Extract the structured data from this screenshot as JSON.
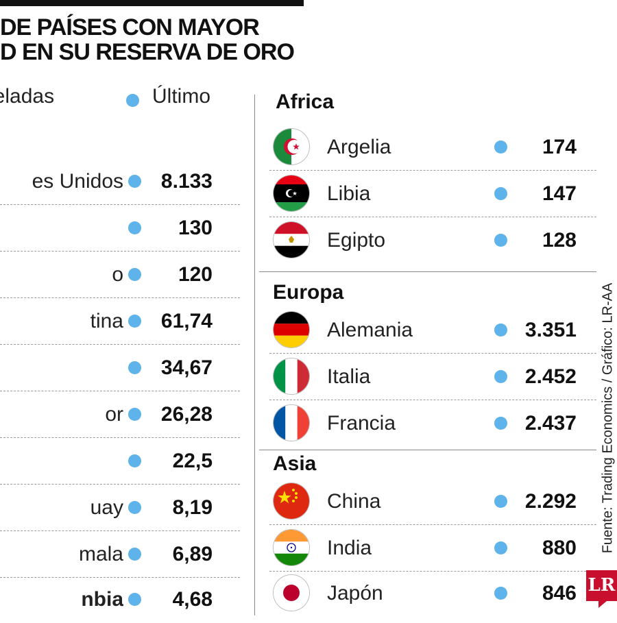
{
  "header": {
    "title_line1": "DE PAÍSES CON MAYOR",
    "title_line2": "D EN SU RESERVA DE ORO"
  },
  "left_table": {
    "unit_header": "neladas",
    "last_header": "Último",
    "rows": [
      {
        "name": "es Unidos",
        "value": "8.133"
      },
      {
        "name": "",
        "value": "130"
      },
      {
        "name": "o",
        "value": "120"
      },
      {
        "name": "tina",
        "value": "61,74"
      },
      {
        "name": "",
        "value": "34,67"
      },
      {
        "name": "or",
        "value": "26,28"
      },
      {
        "name": "",
        "value": "22,5"
      },
      {
        "name": "uay",
        "value": "8,19"
      },
      {
        "name": "mala",
        "value": "6,89"
      },
      {
        "name": "nbia",
        "value": "4,68",
        "bold": true
      }
    ]
  },
  "regions": [
    {
      "name": "Africa",
      "rows": [
        {
          "country": "Argelia",
          "value": "174",
          "flag": "algeria-flag"
        },
        {
          "country": "Libia",
          "value": "147",
          "flag": "libya-flag"
        },
        {
          "country": "Egipto",
          "value": "128",
          "flag": "egypt-flag"
        }
      ]
    },
    {
      "name": "Europa",
      "rows": [
        {
          "country": "Alemania",
          "value": "3.351",
          "flag": "germany-flag"
        },
        {
          "country": "Italia",
          "value": "2.452",
          "flag": "italy-flag"
        },
        {
          "country": "Francia",
          "value": "2.437",
          "flag": "france-flag"
        }
      ]
    },
    {
      "name": "Asia",
      "rows": [
        {
          "country": "China",
          "value": "2.292",
          "flag": "china-flag"
        },
        {
          "country": "India",
          "value": "880",
          "flag": "india-flag"
        },
        {
          "country": "Japón",
          "value": "846",
          "flag": "japan-flag"
        }
      ]
    }
  ],
  "source": "Fuente: Trading Economics / Gráfico: LR-AA",
  "logo": "LR",
  "colors": {
    "dot": "#5db3ea",
    "logo": "#c8102e"
  }
}
